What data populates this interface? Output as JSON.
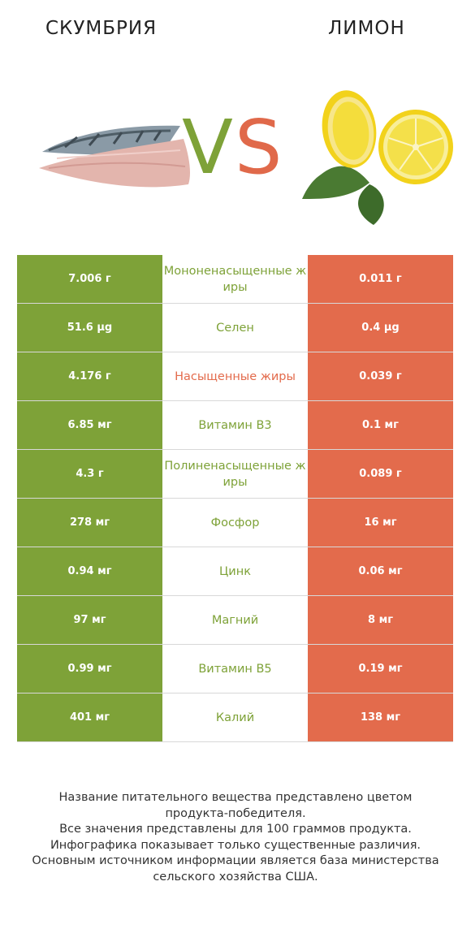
{
  "products": {
    "left": {
      "name": "СКУМБРИЯ",
      "color": "#7ea238"
    },
    "right": {
      "name": "ЛИМОН",
      "color": "#e36b4c"
    }
  },
  "vs": {
    "v": "V",
    "s": "S"
  },
  "rows": [
    {
      "left": "7.006 г",
      "nutrient": "Мононенасыщенные жиры",
      "right": "0.011 г",
      "winner": "left"
    },
    {
      "left": "51.6 µg",
      "nutrient": "Селен",
      "right": "0.4 µg",
      "winner": "left"
    },
    {
      "left": "4.176 г",
      "nutrient": "Насыщенные жиры",
      "right": "0.039 г",
      "winner": "right"
    },
    {
      "left": "6.85 мг",
      "nutrient": "Витамин B3",
      "right": "0.1 мг",
      "winner": "left"
    },
    {
      "left": "4.3 г",
      "nutrient": "Полиненасыщенные жиры",
      "right": "0.089 г",
      "winner": "left"
    },
    {
      "left": "278 мг",
      "nutrient": "Фосфор",
      "right": "16 мг",
      "winner": "left"
    },
    {
      "left": "0.94 мг",
      "nutrient": "Цинк",
      "right": "0.06 мг",
      "winner": "left"
    },
    {
      "left": "97 мг",
      "nutrient": "Магний",
      "right": "8 мг",
      "winner": "left"
    },
    {
      "left": "0.99 мг",
      "nutrient": "Витамин B5",
      "right": "0.19 мг",
      "winner": "left"
    },
    {
      "left": "401 мг",
      "nutrient": "Калий",
      "right": "138 мг",
      "winner": "left"
    }
  ],
  "footer": [
    "Название питательного вещества представлено цветом",
    "продукта-победителя.",
    "Все значения представлены для 100 граммов продукта.",
    "Инфографика показывает только существенные различия.",
    "Основным источником информации является база министерства",
    "сельского хозяйства США."
  ]
}
